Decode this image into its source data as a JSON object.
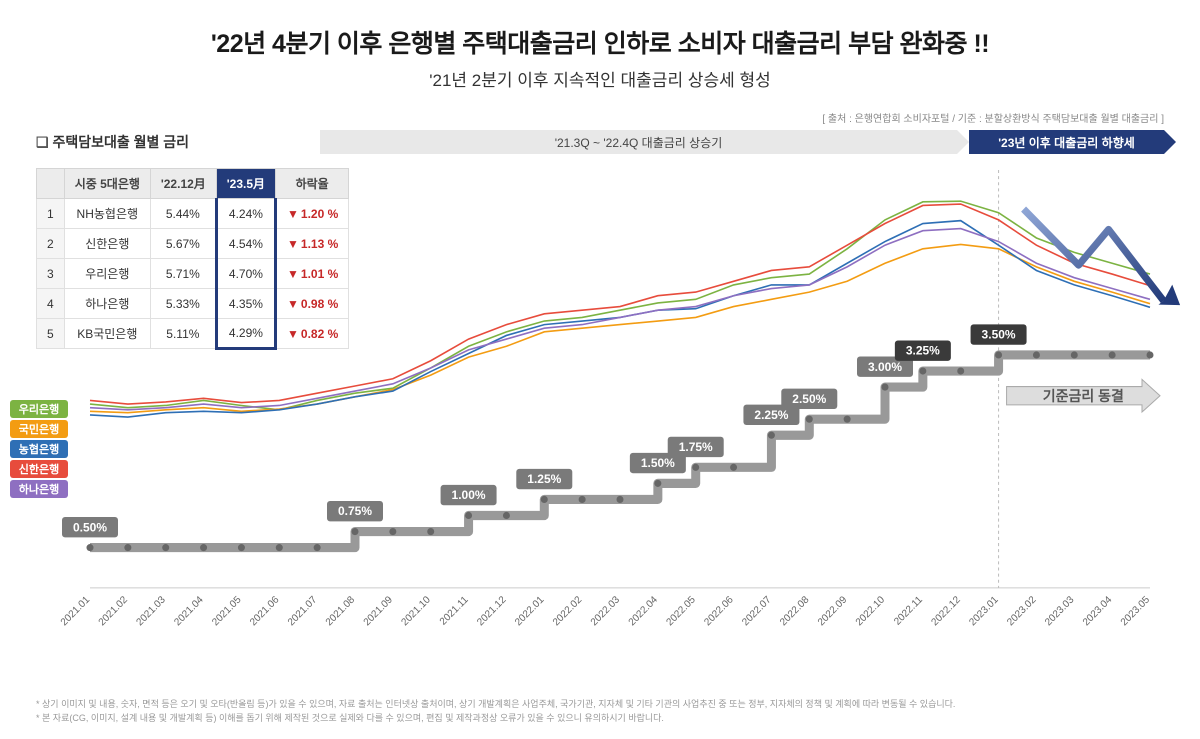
{
  "title": "'22년 4분기 이후 은행별 주택대출금리 인하로 소비자 대출금리 부담 완화중 !!",
  "subtitle": "'21년 2분기 이후 지속적인 대출금리 상승세 형성",
  "source": "[ 출처 : 은행연합회 소비자포털 / 기준 : 분할상환방식 주택담보대출 월별 대출금리 ]",
  "section_label": "주택담보대출 월별 금리",
  "period_rise": "'21.3Q ~ '22.4Q 대출금리 상승기",
  "period_fall": "'23년 이후 대출금리 하향세",
  "table": {
    "headers": [
      "시중 5대은행",
      "'22.12月",
      "'23.5月",
      "하락율"
    ],
    "rows": [
      {
        "rank": "1",
        "bank": "NH농협은행",
        "dec22": "5.44%",
        "may23": "4.24%",
        "drop": "1.20 %"
      },
      {
        "rank": "2",
        "bank": "신한은행",
        "dec22": "5.67%",
        "may23": "4.54%",
        "drop": "1.13 %"
      },
      {
        "rank": "3",
        "bank": "우리은행",
        "dec22": "5.71%",
        "may23": "4.70%",
        "drop": "1.01 %"
      },
      {
        "rank": "4",
        "bank": "하나은행",
        "dec22": "5.33%",
        "may23": "4.35%",
        "drop": "0.98 %"
      },
      {
        "rank": "5",
        "bank": "KB국민은행",
        "dec22": "5.11%",
        "may23": "4.29%",
        "drop": "0.82 %"
      }
    ]
  },
  "legend": [
    {
      "label": "우리은행",
      "color": "#7cb342"
    },
    {
      "label": "국민은행",
      "color": "#f39c12"
    },
    {
      "label": "농협은행",
      "color": "#2e6fb5"
    },
    {
      "label": "신한은행",
      "color": "#e74c3c"
    },
    {
      "label": "하나은행",
      "color": "#8e6fc1"
    }
  ],
  "chart": {
    "type": "line",
    "background_color": "#ffffff",
    "x_labels": [
      "2021.01",
      "2021.02",
      "2021.03",
      "2021.04",
      "2021.05",
      "2021.06",
      "2021.07",
      "2021.08",
      "2021.09",
      "2021.10",
      "2021.11",
      "2021.12",
      "2022.01",
      "2022.02",
      "2022.03",
      "2022.04",
      "2022.05",
      "2022.06",
      "2022.07",
      "2022.08",
      "2022.09",
      "2022.10",
      "2022.11",
      "2022.12",
      "2023.01",
      "2023.02",
      "2023.03",
      "2023.04",
      "2023.05"
    ],
    "y_domain_bank": [
      2.5,
      6.0
    ],
    "y_domain_base": [
      0,
      4.0
    ],
    "base_rate": {
      "color": "#999999",
      "values": [
        0.5,
        0.5,
        0.5,
        0.5,
        0.5,
        0.5,
        0.5,
        0.75,
        0.75,
        0.75,
        1.0,
        1.0,
        1.25,
        1.25,
        1.25,
        1.5,
        1.75,
        1.75,
        2.25,
        2.5,
        2.5,
        3.0,
        3.25,
        3.25,
        3.5,
        3.5,
        3.5,
        3.5,
        3.5
      ],
      "tags": [
        {
          "i": 0,
          "txt": "0.50%",
          "dark": false
        },
        {
          "i": 7,
          "txt": "0.75%",
          "dark": false
        },
        {
          "i": 10,
          "txt": "1.00%",
          "dark": false
        },
        {
          "i": 12,
          "txt": "1.25%",
          "dark": false
        },
        {
          "i": 15,
          "txt": "1.50%",
          "dark": false
        },
        {
          "i": 16,
          "txt": "1.75%",
          "dark": false
        },
        {
          "i": 18,
          "txt": "2.25%",
          "dark": false
        },
        {
          "i": 19,
          "txt": "2.50%",
          "dark": false
        },
        {
          "i": 21,
          "txt": "3.00%",
          "dark": false
        },
        {
          "i": 22,
          "txt": "3.25%",
          "dark": true
        },
        {
          "i": 24,
          "txt": "3.50%",
          "dark": true
        }
      ],
      "freeze_label": "기준금리 동결"
    },
    "banks": [
      {
        "name": "우리은행",
        "color": "#7cb342",
        "values": [
          2.9,
          2.85,
          2.88,
          2.95,
          2.88,
          2.82,
          2.95,
          3.05,
          3.12,
          3.4,
          3.7,
          3.9,
          4.05,
          4.1,
          4.2,
          4.3,
          4.35,
          4.55,
          4.65,
          4.7,
          5.05,
          5.45,
          5.7,
          5.71,
          5.55,
          5.2,
          5.0,
          4.85,
          4.7
        ]
      },
      {
        "name": "국민은행",
        "color": "#f39c12",
        "values": [
          2.8,
          2.78,
          2.82,
          2.85,
          2.8,
          2.83,
          2.9,
          3.0,
          3.1,
          3.3,
          3.55,
          3.7,
          3.9,
          3.95,
          4.0,
          4.05,
          4.1,
          4.25,
          4.35,
          4.45,
          4.6,
          4.85,
          5.05,
          5.11,
          5.05,
          4.8,
          4.6,
          4.45,
          4.29
        ]
      },
      {
        "name": "농협은행",
        "color": "#2e6fb5",
        "values": [
          2.75,
          2.72,
          2.78,
          2.8,
          2.78,
          2.82,
          2.9,
          3.0,
          3.08,
          3.35,
          3.6,
          3.85,
          4.0,
          4.05,
          4.1,
          4.2,
          4.22,
          4.4,
          4.55,
          4.55,
          4.85,
          5.15,
          5.4,
          5.44,
          5.1,
          4.75,
          4.55,
          4.4,
          4.24
        ]
      },
      {
        "name": "신한은행",
        "color": "#e74c3c",
        "values": [
          2.95,
          2.9,
          2.93,
          2.98,
          2.92,
          2.95,
          3.05,
          3.15,
          3.25,
          3.5,
          3.8,
          4.0,
          4.15,
          4.2,
          4.25,
          4.4,
          4.45,
          4.6,
          4.75,
          4.8,
          5.1,
          5.4,
          5.65,
          5.67,
          5.45,
          5.1,
          4.85,
          4.7,
          4.54
        ]
      },
      {
        "name": "하나은행",
        "color": "#8e6fc1",
        "values": [
          2.85,
          2.82,
          2.85,
          2.9,
          2.85,
          2.88,
          2.98,
          3.08,
          3.18,
          3.4,
          3.65,
          3.8,
          3.95,
          4.0,
          4.1,
          4.2,
          4.25,
          4.4,
          4.5,
          4.55,
          4.8,
          5.1,
          5.3,
          5.33,
          5.15,
          4.85,
          4.65,
          4.5,
          4.35
        ]
      }
    ],
    "divider_index": 24
  },
  "footnotes": [
    "* 상기 이미지 및 내용, 숫자, 면적 등은 오기 및 오타(반올림 등)가 있을 수 있으며, 자료 출처는 인터넷상 출처이며, 상기 개발계획은 사업주체, 국가기관, 지자체 및 기타 기관의 사업추진 중 또는 정부, 지자체의 정책 및 계획에 따라 변동될 수 있습니다.",
    "* 본 자료(CG, 이미지, 설계 내용 및 개발계획 등) 이해를 돕기 위해 제작된 것으로 실제와 다를 수 있으며, 편집 및 제작과정상 오류가 있을 수 있으니 유의하시기 바랍니다."
  ]
}
